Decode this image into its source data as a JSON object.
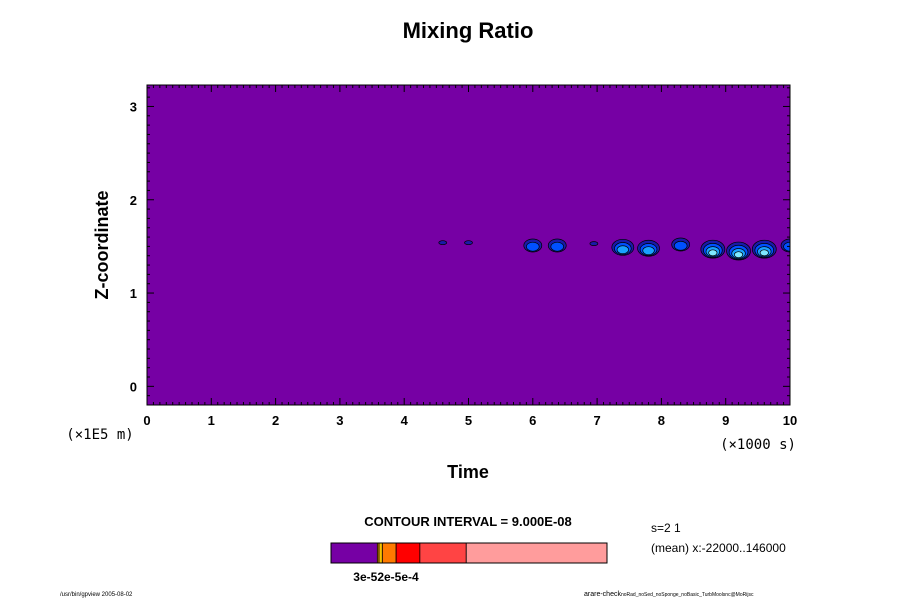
{
  "chart_data": {
    "type": "heatmap",
    "title": "Mixing Ratio",
    "xlabel": "Time",
    "ylabel": "Z-coordinate",
    "x_unit_note": "(×1000 s)",
    "y_unit_note": "(×1E5 m)",
    "xlim": [
      0,
      10
    ],
    "ylim": [
      -0.2,
      3.23
    ],
    "x_ticks": [
      0,
      1,
      2,
      3,
      4,
      5,
      6,
      7,
      8,
      9,
      10
    ],
    "y_ticks": [
      0,
      1,
      2,
      3
    ],
    "background_level_color": "#7600a4",
    "features": [
      {
        "t": 4.6,
        "z": 1.54,
        "level": 1
      },
      {
        "t": 5.0,
        "z": 1.54,
        "level": 1
      },
      {
        "t": 6.0,
        "z": 1.51,
        "level": 2
      },
      {
        "t": 6.38,
        "z": 1.51,
        "level": 2
      },
      {
        "t": 6.95,
        "z": 1.53,
        "level": 1
      },
      {
        "t": 7.4,
        "z": 1.49,
        "level": 3
      },
      {
        "t": 7.8,
        "z": 1.48,
        "level": 3
      },
      {
        "t": 8.3,
        "z": 1.52,
        "level": 2
      },
      {
        "t": 8.8,
        "z": 1.47,
        "level": 4
      },
      {
        "t": 9.2,
        "z": 1.45,
        "level": 4
      },
      {
        "t": 9.6,
        "z": 1.47,
        "level": 4
      },
      {
        "t": 10.0,
        "z": 1.51,
        "level": 2
      }
    ],
    "contour_interval_text": "CONTOUR INTERVAL = 9.000E-08",
    "colorbar": {
      "colors": [
        "#7600a4",
        "#ff9900",
        "#f5c400",
        "#ff7a00",
        "#ff0000",
        "#ff4444",
        "#ff9c9c"
      ],
      "fractions": [
        0.168,
        0.006,
        0.012,
        0.05,
        0.086,
        0.168,
        0.51
      ],
      "tick_label_text": "3e-52e-5e-4"
    },
    "side_info": {
      "line1": "s=2 1",
      "line2": "(mean) x:-22000..146000"
    }
  },
  "footer": {
    "left": "/usr/bin/gpview 2005-08-02",
    "right_main": "arare-check",
    "right_small": "noRad_noSed_noSponge_noBasic_TurbMoolsnc@MoRijsc"
  }
}
